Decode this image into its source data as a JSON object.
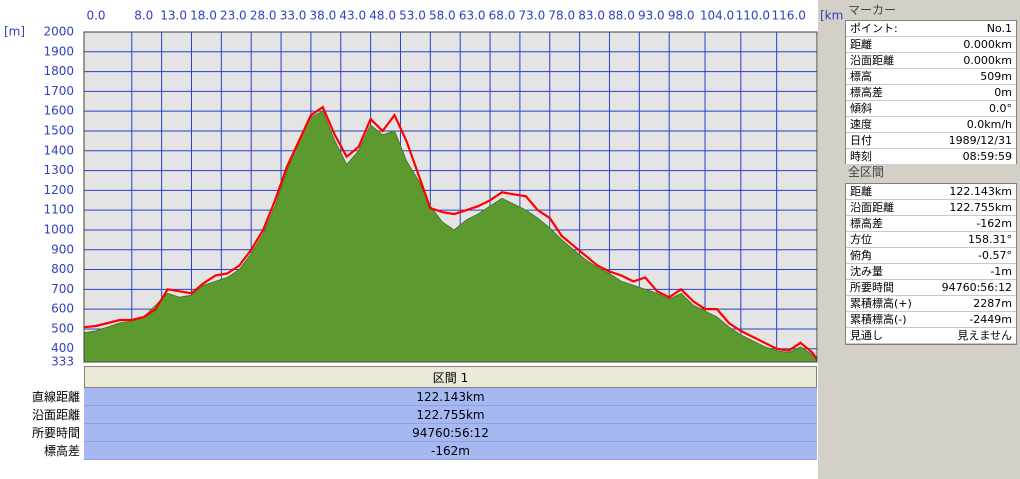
{
  "chart_data": {
    "type": "area_line",
    "y_label": "[m]",
    "x_label": "[km]",
    "x": [
      0,
      2,
      4,
      6,
      8,
      10,
      12,
      14,
      16,
      18,
      20,
      22,
      24,
      26,
      28,
      30,
      32,
      34,
      36,
      38,
      40,
      42,
      44,
      46,
      48,
      50,
      52,
      54,
      56,
      58,
      60,
      62,
      64,
      66,
      68,
      70,
      72,
      74,
      76,
      78,
      80,
      82,
      84,
      86,
      88,
      90,
      92,
      94,
      96,
      98,
      100,
      102,
      104,
      106,
      108,
      110,
      112,
      114,
      116,
      118,
      120,
      122,
      122.755
    ],
    "series": [
      {
        "color": "#5c9a30",
        "kind": "area",
        "values": [
          480,
          490,
          510,
          530,
          540,
          560,
          620,
          680,
          660,
          670,
          720,
          740,
          760,
          800,
          880,
          980,
          1120,
          1300,
          1450,
          1570,
          1600,
          1450,
          1330,
          1400,
          1530,
          1480,
          1500,
          1350,
          1250,
          1120,
          1040,
          1000,
          1050,
          1080,
          1120,
          1160,
          1130,
          1100,
          1060,
          1010,
          950,
          900,
          850,
          810,
          780,
          740,
          720,
          700,
          680,
          650,
          680,
          620,
          590,
          560,
          510,
          470,
          440,
          410,
          390,
          380,
          410,
          370,
          340
        ]
      },
      {
        "color": "#ff0000",
        "kind": "line",
        "values": [
          509,
          515,
          530,
          545,
          545,
          560,
          600,
          700,
          690,
          680,
          730,
          770,
          780,
          820,
          900,
          1000,
          1150,
          1320,
          1450,
          1580,
          1620,
          1480,
          1370,
          1420,
          1560,
          1500,
          1580,
          1450,
          1280,
          1110,
          1090,
          1080,
          1100,
          1120,
          1150,
          1190,
          1180,
          1170,
          1100,
          1060,
          970,
          920,
          870,
          820,
          790,
          770,
          740,
          760,
          690,
          660,
          700,
          640,
          600,
          600,
          530,
          490,
          460,
          430,
          400,
          390,
          430,
          380,
          347
        ]
      }
    ],
    "xlim": [
      0,
      122.755
    ],
    "xticks": [
      {
        "value": 0,
        "label": "0.0"
      },
      {
        "value": 8,
        "label": "8.0"
      },
      {
        "value": 13,
        "label": "13.0"
      },
      {
        "value": 18,
        "label": "18.0"
      },
      {
        "value": 23,
        "label": "23.0"
      },
      {
        "value": 28,
        "label": "28.0"
      },
      {
        "value": 33,
        "label": "33.0"
      },
      {
        "value": 38,
        "label": "38.0"
      },
      {
        "value": 43,
        "label": "43.0"
      },
      {
        "value": 48,
        "label": "48.0"
      },
      {
        "value": 53,
        "label": "53.0"
      },
      {
        "value": 58,
        "label": "58.0"
      },
      {
        "value": 63,
        "label": "63.0"
      },
      {
        "value": 68,
        "label": "68.0"
      },
      {
        "value": 73,
        "label": "73.0"
      },
      {
        "value": 78,
        "label": "78.0"
      },
      {
        "value": 83,
        "label": "83.0"
      },
      {
        "value": 88,
        "label": "88.0"
      },
      {
        "value": 93,
        "label": "93.0"
      },
      {
        "value": 98,
        "label": "98.0"
      },
      {
        "value": 104,
        "label": "104.0"
      },
      {
        "value": 110,
        "label": "110.0"
      },
      {
        "value": 116,
        "label": "116.0"
      }
    ],
    "ylim": [
      333,
      2000
    ],
    "yticks": [
      333,
      400,
      500,
      600,
      700,
      800,
      900,
      1000,
      1100,
      1200,
      1300,
      1400,
      1500,
      1600,
      1700,
      1800,
      1900,
      2000
    ],
    "grid": true,
    "grid_color": "#2a40c8"
  },
  "segment_table": {
    "header": "区間 1",
    "rows": [
      [
        "直線距離",
        "122.143km"
      ],
      [
        "沿面距離",
        "122.755km"
      ],
      [
        "所要時間",
        "94760:56:12"
      ],
      [
        "標高差",
        "-162m"
      ]
    ]
  },
  "marker_panel": {
    "title": "マーカー",
    "rows": [
      [
        "ポイント:",
        "No.1"
      ],
      [
        "距離",
        "0.000km"
      ],
      [
        "沿面距離",
        "0.000km"
      ],
      [
        "標高",
        "509m"
      ],
      [
        "標高差",
        "0m"
      ],
      [
        "傾斜",
        "0.0°"
      ],
      [
        "速度",
        "0.0km/h"
      ],
      [
        "日付",
        "1989/12/31"
      ],
      [
        "時刻",
        "08:59:59"
      ]
    ]
  },
  "total_panel": {
    "title": "全区間",
    "rows": [
      [
        "距離",
        "122.143km"
      ],
      [
        "沿面距離",
        "122.755km"
      ],
      [
        "標高差",
        "-162m"
      ],
      [
        "方位",
        "158.31°"
      ],
      [
        "俯角",
        "-0.57°"
      ],
      [
        "沈み量",
        "-1m"
      ],
      [
        "所要時間",
        "94760:56:12"
      ],
      [
        "累積標高(+)",
        "2287m"
      ],
      [
        "累積標高(-)",
        "-2449m"
      ],
      [
        "見通し",
        "見えません"
      ]
    ]
  }
}
